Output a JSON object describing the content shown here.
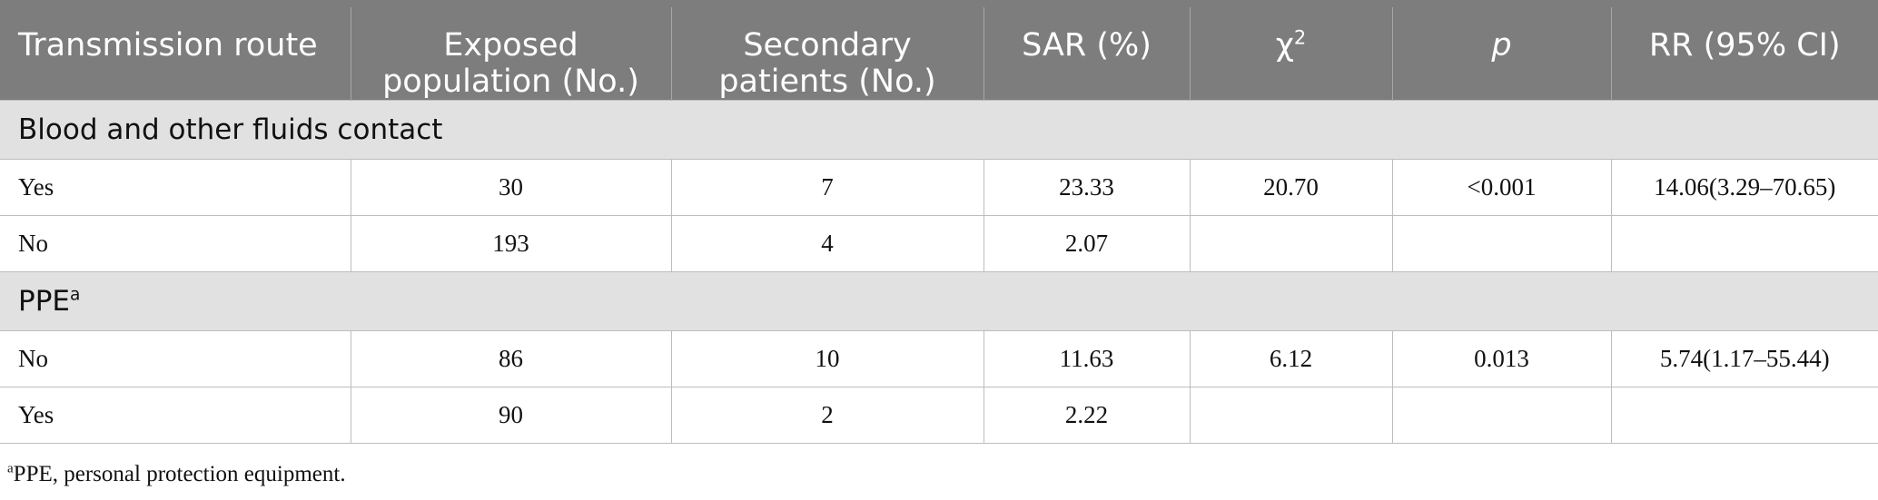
{
  "table": {
    "headers": [
      {
        "main": "Transmission route"
      },
      {
        "main": "Exposed",
        "line2": "population (No.)"
      },
      {
        "main": "Secondary",
        "line2": "patients (No.)"
      },
      {
        "main": "SAR (%)"
      },
      {
        "main": "χ",
        "sup": "2"
      },
      {
        "main": "p"
      },
      {
        "main": "RR (95% CI)"
      }
    ],
    "sections": [
      {
        "title": "Blood and other fluids contact",
        "title_sup": "",
        "rows": [
          [
            "Yes",
            "30",
            "7",
            "23.33",
            "20.70",
            "<0.001",
            "14.06(3.29–70.65)"
          ],
          [
            "No",
            "193",
            "4",
            "2.07",
            "",
            "",
            ""
          ]
        ]
      },
      {
        "title": "PPE",
        "title_sup": "a",
        "rows": [
          [
            "No",
            "86",
            "10",
            "11.63",
            "6.12",
            "0.013",
            "5.74(1.17–55.44)"
          ],
          [
            "Yes",
            "90",
            "2",
            "2.22",
            "",
            "",
            ""
          ]
        ]
      }
    ]
  },
  "footnote": {
    "marker": "a",
    "text": "PPE, personal protection equipment."
  }
}
